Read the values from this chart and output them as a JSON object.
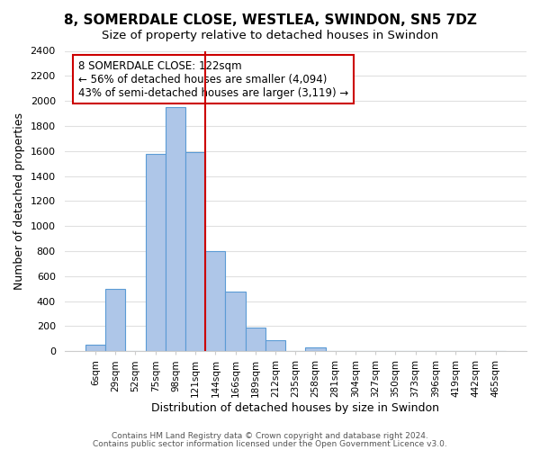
{
  "title": "8, SOMERDALE CLOSE, WESTLEA, SWINDON, SN5 7DZ",
  "subtitle": "Size of property relative to detached houses in Swindon",
  "xlabel": "Distribution of detached houses by size in Swindon",
  "ylabel": "Number of detached properties",
  "bin_labels": [
    "6sqm",
    "29sqm",
    "52sqm",
    "75sqm",
    "98sqm",
    "121sqm",
    "144sqm",
    "166sqm",
    "189sqm",
    "212sqm",
    "235sqm",
    "258sqm",
    "281sqm",
    "304sqm",
    "327sqm",
    "350sqm",
    "373sqm",
    "396sqm",
    "419sqm",
    "442sqm",
    "465sqm"
  ],
  "bar_values": [
    50,
    500,
    0,
    1580,
    1950,
    1590,
    800,
    480,
    190,
    90,
    0,
    30,
    0,
    0,
    0,
    0,
    0,
    0,
    0,
    0,
    0
  ],
  "bar_color": "#aec6e8",
  "bar_edge_color": "#5b9bd5",
  "vline_pos": 5.5,
  "vline_color": "#cc0000",
  "ylim": [
    0,
    2400
  ],
  "yticks": [
    0,
    200,
    400,
    600,
    800,
    1000,
    1200,
    1400,
    1600,
    1800,
    2000,
    2200,
    2400
  ],
  "annotation_title": "8 SOMERDALE CLOSE: 122sqm",
  "annotation_line1": "← 56% of detached houses are smaller (4,094)",
  "annotation_line2": "43% of semi-detached houses are larger (3,119) →",
  "annotation_box_color": "#ffffff",
  "annotation_box_edge": "#cc0000",
  "footer_line1": "Contains HM Land Registry data © Crown copyright and database right 2024.",
  "footer_line2": "Contains public sector information licensed under the Open Government Licence v3.0.",
  "background_color": "#ffffff",
  "grid_color": "#e0e0e0"
}
